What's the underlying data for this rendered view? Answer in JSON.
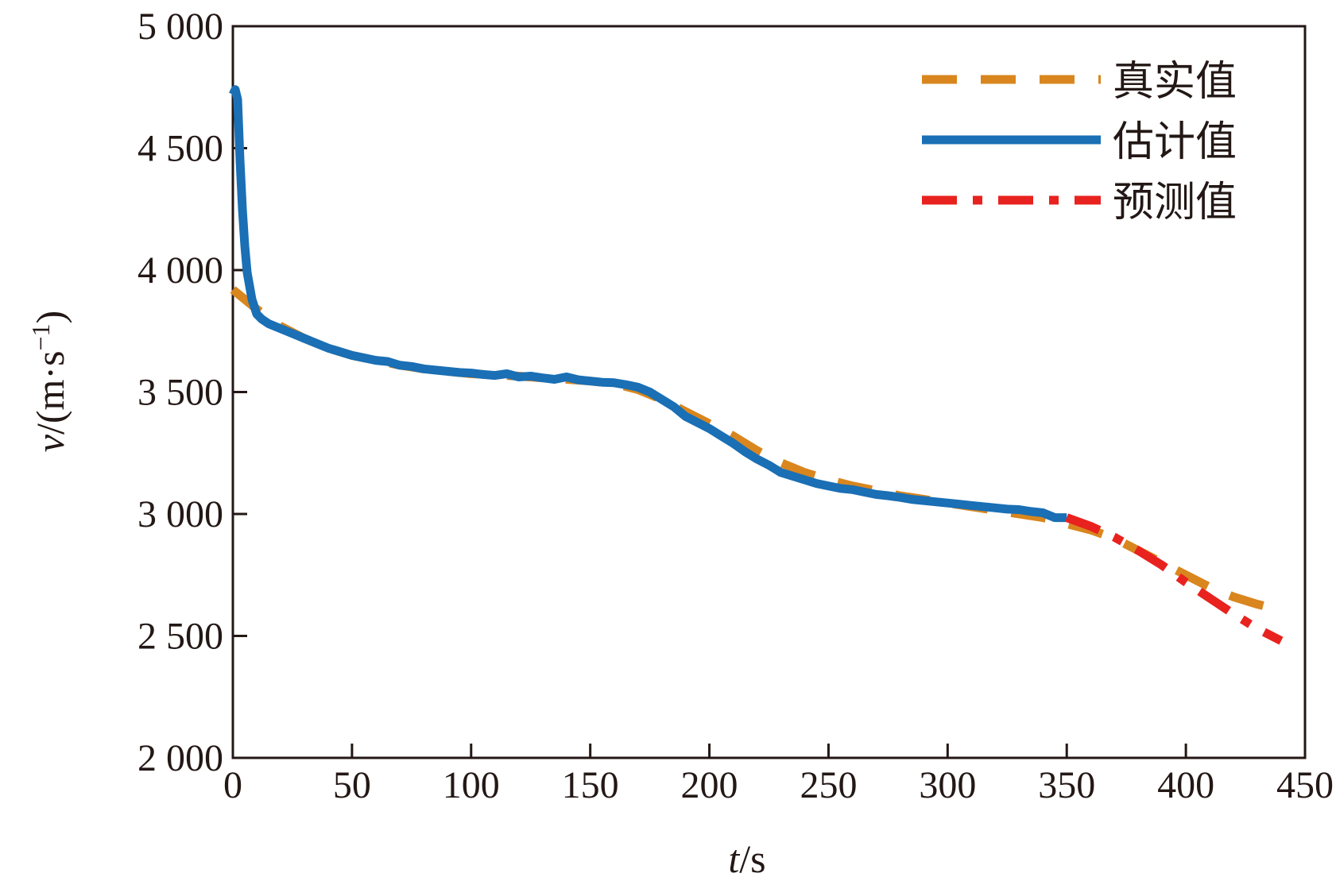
{
  "chart_data": {
    "type": "line",
    "title": "",
    "xlabel": {
      "var": "t",
      "unit": "/s"
    },
    "ylabel": {
      "var": "v",
      "unit": "/(m·s",
      "sup": "−1",
      "close": ")"
    },
    "xlim": [
      0,
      450
    ],
    "ylim": [
      2000,
      5000
    ],
    "xticks": [
      0,
      50,
      100,
      150,
      200,
      250,
      300,
      350,
      400,
      450
    ],
    "xtick_labels": [
      "0",
      "50",
      "100",
      "150",
      "200",
      "250",
      "300",
      "350",
      "400",
      "450"
    ],
    "yticks": [
      2000,
      2500,
      3000,
      3500,
      4000,
      4500,
      5000
    ],
    "ytick_labels": [
      "2 000",
      "2 500",
      "3 000",
      "3 500",
      "4 000",
      "4 500",
      "5 000"
    ],
    "grid": false,
    "legend_position": "top-right",
    "series": [
      {
        "name": "真实值",
        "color": "#d9861e",
        "style": "dashed",
        "x": [
          0,
          10,
          20,
          30,
          40,
          50,
          60,
          70,
          80,
          90,
          100,
          110,
          120,
          130,
          140,
          150,
          160,
          170,
          180,
          190,
          200,
          210,
          220,
          230,
          240,
          250,
          260,
          270,
          280,
          290,
          300,
          310,
          320,
          330,
          340,
          350,
          360,
          370,
          380,
          390,
          400,
          410,
          420,
          430,
          440
        ],
        "y": [
          3920,
          3840,
          3770,
          3720,
          3680,
          3650,
          3630,
          3610,
          3595,
          3585,
          3575,
          3570,
          3565,
          3558,
          3552,
          3545,
          3535,
          3510,
          3470,
          3420,
          3370,
          3320,
          3260,
          3210,
          3170,
          3140,
          3115,
          3095,
          3075,
          3060,
          3045,
          3030,
          3015,
          3000,
          2985,
          2960,
          2935,
          2900,
          2850,
          2800,
          2750,
          2700,
          2660,
          2630,
          2605
        ]
      },
      {
        "name": "估计值",
        "color": "#1a6fb5",
        "style": "solid",
        "x": [
          0,
          1,
          2,
          3,
          4,
          5,
          6,
          8,
          10,
          12,
          15,
          20,
          25,
          30,
          35,
          40,
          45,
          50,
          55,
          60,
          65,
          70,
          75,
          80,
          85,
          90,
          95,
          100,
          105,
          110,
          115,
          120,
          125,
          130,
          135,
          140,
          145,
          150,
          155,
          160,
          165,
          170,
          175,
          180,
          185,
          190,
          195,
          200,
          205,
          210,
          215,
          220,
          225,
          230,
          235,
          240,
          245,
          250,
          255,
          260,
          265,
          270,
          275,
          280,
          285,
          290,
          295,
          300,
          305,
          310,
          315,
          320,
          325,
          330,
          335,
          340,
          345,
          350
        ],
        "y": [
          4720,
          4740,
          4700,
          4450,
          4250,
          4100,
          3990,
          3880,
          3820,
          3800,
          3780,
          3760,
          3740,
          3720,
          3700,
          3680,
          3665,
          3650,
          3640,
          3630,
          3625,
          3610,
          3605,
          3595,
          3590,
          3585,
          3580,
          3578,
          3572,
          3568,
          3575,
          3562,
          3565,
          3558,
          3552,
          3562,
          3550,
          3545,
          3540,
          3538,
          3530,
          3520,
          3500,
          3470,
          3440,
          3400,
          3375,
          3350,
          3320,
          3290,
          3255,
          3225,
          3200,
          3170,
          3155,
          3140,
          3125,
          3115,
          3105,
          3100,
          3090,
          3080,
          3075,
          3068,
          3060,
          3055,
          3050,
          3045,
          3040,
          3035,
          3030,
          3025,
          3020,
          3018,
          3010,
          3005,
          2985,
          2985
        ]
      },
      {
        "name": "预测值",
        "color": "#e8221e",
        "style": "dashdot",
        "x": [
          350,
          360,
          370,
          380,
          390,
          400,
          410,
          420,
          430,
          440
        ],
        "y": [
          2985,
          2950,
          2905,
          2850,
          2790,
          2720,
          2655,
          2590,
          2530,
          2480
        ]
      }
    ]
  }
}
